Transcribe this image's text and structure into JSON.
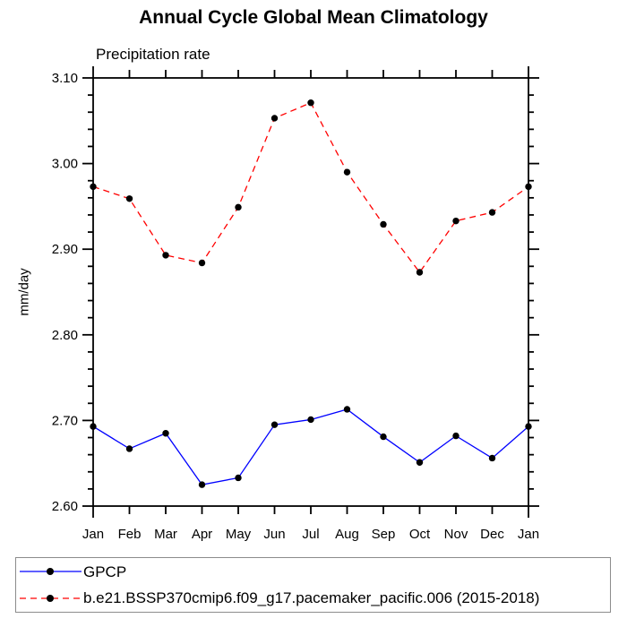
{
  "chart_data": {
    "type": "line",
    "title": "Annual Cycle Global Mean Climatology",
    "subtitle": "Precipitation rate",
    "ylabel": "mm/day",
    "xlabel": "",
    "categories": [
      "Jan",
      "Feb",
      "Mar",
      "Apr",
      "May",
      "Jun",
      "Jul",
      "Aug",
      "Sep",
      "Oct",
      "Nov",
      "Dec",
      "Jan"
    ],
    "ylim": [
      2.6,
      3.1
    ],
    "ytick_step": 0.1,
    "yminor_step": 0.02,
    "ytick_labels": [
      "2.60",
      "2.70",
      "2.80",
      "2.90",
      "3.00",
      "3.10"
    ],
    "grid": false,
    "legend_position": "bottom",
    "series": [
      {
        "name": "GPCP",
        "color": "#0000ff",
        "style": "solid",
        "marker": "filled-circle",
        "values": [
          2.693,
          2.667,
          2.685,
          2.625,
          2.633,
          2.695,
          2.701,
          2.713,
          2.681,
          2.651,
          2.682,
          2.656,
          2.693
        ]
      },
      {
        "name": "b.e21.BSSP370cmip6.f09_g17.pacemaker_pacific.006 (2015-2018)",
        "color": "#ff0000",
        "style": "dashed",
        "marker": "filled-circle",
        "values": [
          2.973,
          2.959,
          2.893,
          2.884,
          2.949,
          3.053,
          3.071,
          2.99,
          2.929,
          2.873,
          2.933,
          2.943,
          2.973
        ]
      }
    ],
    "colors": {
      "axis": "#000000",
      "text": "#000000",
      "marker": "#000000",
      "legend_border": "#8c8c8c"
    }
  }
}
